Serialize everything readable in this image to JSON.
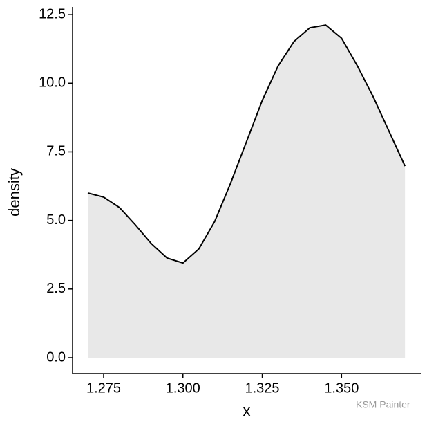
{
  "chart_data": {
    "type": "density",
    "xlabel": "x",
    "ylabel": "density",
    "x": [
      1.27,
      1.275,
      1.28,
      1.285,
      1.29,
      1.295,
      1.3,
      1.305,
      1.31,
      1.315,
      1.32,
      1.325,
      1.33,
      1.335,
      1.34,
      1.345,
      1.35,
      1.355,
      1.36,
      1.365,
      1.37
    ],
    "values": [
      6.0,
      5.85,
      5.47,
      4.84,
      4.16,
      3.63,
      3.45,
      3.96,
      4.96,
      6.35,
      7.86,
      9.37,
      10.63,
      11.52,
      12.02,
      12.12,
      11.64,
      10.63,
      9.5,
      8.24,
      6.98
    ],
    "fill": "#e8e8e8",
    "color": "#000000",
    "xlim": [
      1.2652,
      1.3752
    ],
    "ylim": [
      -0.58,
      12.78
    ],
    "xticks": [
      1.275,
      {
        "value": 1.3,
        "label": "1.300"
      },
      1.325,
      {
        "value": 1.35,
        "label": "1.350"
      }
    ],
    "yticks": [
      {
        "value": 0,
        "label": "0.0"
      },
      2.5,
      {
        "value": 5,
        "label": "5.0"
      },
      7.5,
      {
        "value": 10,
        "label": "10.0"
      },
      12.5
    ],
    "grid": false
  },
  "watermark": "KSM Painter"
}
